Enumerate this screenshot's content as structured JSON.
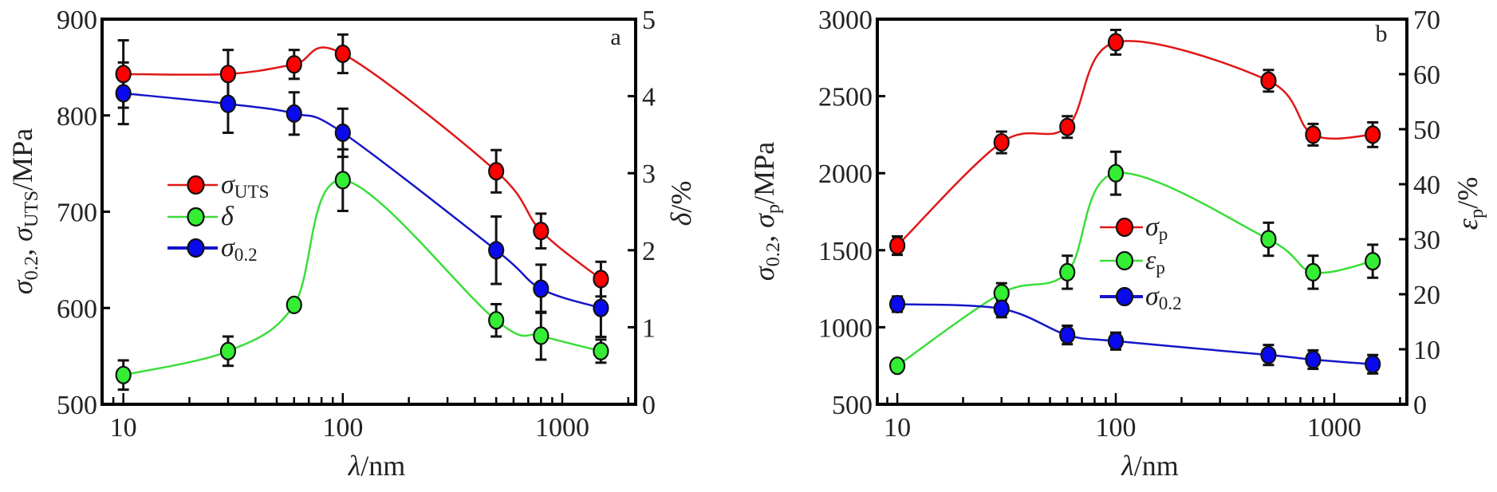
{
  "chart_data": [
    {
      "type": "line",
      "panel_label": "a",
      "xlabel": [
        {
          "text": "λ",
          "style": "italic"
        },
        {
          "text": "/nm"
        }
      ],
      "xscale": "log",
      "xlim": [
        8,
        2160
      ],
      "xticks": [
        10,
        100,
        1000
      ],
      "xtick_labels": [
        "10",
        "100",
        "1000"
      ],
      "y_left": {
        "label": [
          {
            "text": "σ",
            "style": "italic"
          },
          {
            "text": "0.2",
            "style": "sub"
          },
          {
            "text": ", "
          },
          {
            "text": "σ",
            "style": "italic"
          },
          {
            "text": "UTS",
            "style": "sub"
          },
          {
            "text": "/MPa"
          }
        ],
        "lim": [
          500,
          900
        ],
        "ticks": [
          500,
          600,
          700,
          800,
          900
        ],
        "tick_labels": [
          "500",
          "600",
          "700",
          "800",
          "900"
        ]
      },
      "y_right": {
        "label": [
          {
            "text": "δ",
            "style": "italic"
          },
          {
            "text": "/%"
          }
        ],
        "lim": [
          0,
          5
        ],
        "ticks": [
          0,
          1,
          2,
          3,
          4,
          5
        ],
        "tick_labels": [
          "0",
          "1",
          "2",
          "3",
          "4",
          "5"
        ]
      },
      "legend_position": "center-left",
      "series": [
        {
          "name": [
            {
              "text": "σ",
              "style": "italic"
            },
            {
              "text": "UTS",
              "style": "sub"
            }
          ],
          "axis": "left",
          "color": "#e01818",
          "marker_color": "#ff0000",
          "x": [
            10,
            30,
            60,
            100,
            500,
            800,
            1500
          ],
          "values": [
            843,
            843,
            853,
            864,
            742,
            680,
            630
          ],
          "errors": [
            35,
            25,
            15,
            20,
            22,
            18,
            18
          ]
        },
        {
          "name": [
            {
              "text": "δ",
              "style": "italic"
            }
          ],
          "axis": "right",
          "color": "#3ade3a",
          "marker_color": "#33ee33",
          "x": [
            10,
            30,
            60,
            100,
            500,
            800,
            1500
          ],
          "values": [
            0.38,
            0.69,
            1.29,
            2.91,
            1.09,
            0.89,
            0.69
          ],
          "errors": [
            0.19,
            0.19,
            0.05,
            0.4,
            0.21,
            0.31,
            0.15
          ]
        },
        {
          "name": [
            {
              "text": "σ",
              "style": "italic"
            },
            {
              "text": "0.2",
              "style": "sub"
            }
          ],
          "axis": "left",
          "color": "#1515c8",
          "marker_color": "#0a0aee",
          "x": [
            10,
            30,
            60,
            100,
            500,
            800,
            1500
          ],
          "values": [
            823,
            812,
            802,
            782,
            660,
            620,
            600
          ],
          "errors": [
            32,
            30,
            22,
            25,
            35,
            25,
            30
          ]
        }
      ]
    },
    {
      "type": "line",
      "panel_label": "b",
      "xlabel": [
        {
          "text": "λ",
          "style": "italic"
        },
        {
          "text": "/nm"
        }
      ],
      "xscale": "log",
      "xlim": [
        8.1,
        2150
      ],
      "xticks": [
        10,
        100,
        1000
      ],
      "xtick_labels": [
        "10",
        "100",
        "1000"
      ],
      "y_left": {
        "label": [
          {
            "text": "σ",
            "style": "italic"
          },
          {
            "text": "0.2",
            "style": "sub"
          },
          {
            "text": ", "
          },
          {
            "text": "σ",
            "style": "italic"
          },
          {
            "text": "p",
            "style": "sub"
          },
          {
            "text": "/MPa"
          }
        ],
        "lim": [
          500,
          3000
        ],
        "ticks": [
          500,
          1000,
          1500,
          2000,
          2500,
          3000
        ],
        "tick_labels": [
          "500",
          "1000",
          "1500",
          "2000",
          "2500",
          "3000"
        ]
      },
      "y_right": {
        "label": [
          {
            "text": "ε",
            "style": "italic"
          },
          {
            "text": "p",
            "style": "sub"
          },
          {
            "text": "/%"
          }
        ],
        "lim": [
          0,
          70
        ],
        "ticks": [
          0,
          10,
          20,
          30,
          40,
          50,
          60,
          70
        ],
        "tick_labels": [
          "0",
          "10",
          "20",
          "30",
          "40",
          "50",
          "60",
          "70"
        ]
      },
      "legend_position": "center",
      "series": [
        {
          "name": [
            {
              "text": "σ",
              "style": "italic"
            },
            {
              "text": "p",
              "style": "sub"
            }
          ],
          "axis": "left",
          "color": "#e01818",
          "marker_color": "#ff0000",
          "x": [
            10,
            30,
            60,
            100,
            500,
            800,
            1500
          ],
          "values": [
            1530,
            2200,
            2300,
            2850,
            2600,
            2250,
            2250
          ],
          "errors": [
            60,
            70,
            70,
            80,
            70,
            70,
            80
          ]
        },
        {
          "name": [
            {
              "text": "ε",
              "style": "italic"
            },
            {
              "text": "p",
              "style": "sub"
            }
          ],
          "axis": "right",
          "color": "#3ade3a",
          "marker_color": "#33ee33",
          "x": [
            10,
            30,
            60,
            100,
            500,
            800,
            1500
          ],
          "values": [
            7,
            20.2,
            24,
            42,
            30,
            24,
            26
          ],
          "errors": [
            1,
            1.8,
            3,
            3.9,
            3,
            3,
            3
          ]
        },
        {
          "name": [
            {
              "text": "σ",
              "style": "italic"
            },
            {
              "text": "0.2",
              "style": "sub"
            }
          ],
          "axis": "left",
          "color": "#1515c8",
          "marker_color": "#0a0aee",
          "x": [
            10,
            30,
            60,
            100,
            500,
            800,
            1500
          ],
          "values": [
            1150,
            1120,
            950,
            910,
            820,
            790,
            760
          ],
          "errors": [
            50,
            55,
            60,
            55,
            65,
            60,
            60
          ]
        }
      ]
    }
  ]
}
